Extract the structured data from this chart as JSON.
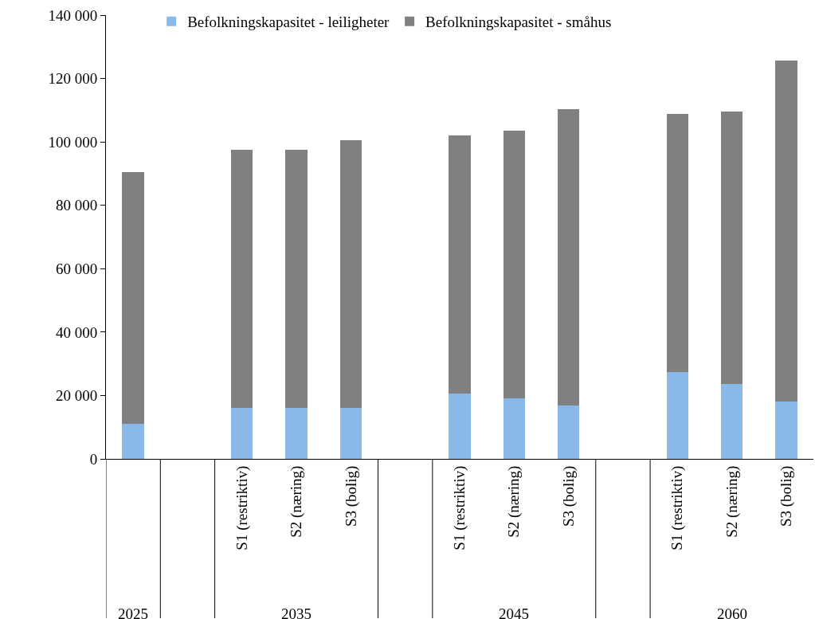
{
  "chart_data": {
    "type": "bar",
    "stacked": true,
    "categories": [
      null,
      null,
      "S1 (restriktiv)",
      "S2 (næring)",
      "S3 (bolig)",
      null,
      "S1 (restriktiv)",
      "S2 (næring)",
      "S3 (bolig)",
      null,
      "S1 (restriktiv)",
      "S2 (næring)",
      "S3 (bolig)"
    ],
    "series": [
      {
        "name": "Befolkningskapasitet - leiligheter",
        "color": "#8ab8e8",
        "values": [
          11000,
          null,
          16000,
          16000,
          16000,
          null,
          20600,
          19100,
          16800,
          null,
          27400,
          23600,
          18100
        ]
      },
      {
        "name": "Befolkningskapasitet - småhus",
        "color": "#808080",
        "values": [
          79500,
          null,
          81500,
          81500,
          84500,
          null,
          81400,
          84400,
          93500,
          null,
          81400,
          85900,
          107500
        ]
      }
    ],
    "annotations": [
      "2025",
      "2035",
      "2045",
      "2060"
    ],
    "ylim": [
      0,
      140000
    ],
    "yticks": [
      {
        "value": 0,
        "label": "0"
      },
      {
        "value": 20000,
        "label": "20 000"
      },
      {
        "value": 40000,
        "label": "40 000"
      },
      {
        "value": 60000,
        "label": "60 000"
      },
      {
        "value": 80000,
        "label": "80 000"
      },
      {
        "value": 100000,
        "label": "100 000"
      },
      {
        "value": 120000,
        "label": "120 000"
      },
      {
        "value": 140000,
        "label": "140 000"
      }
    ],
    "grid": false,
    "legend": "top"
  }
}
